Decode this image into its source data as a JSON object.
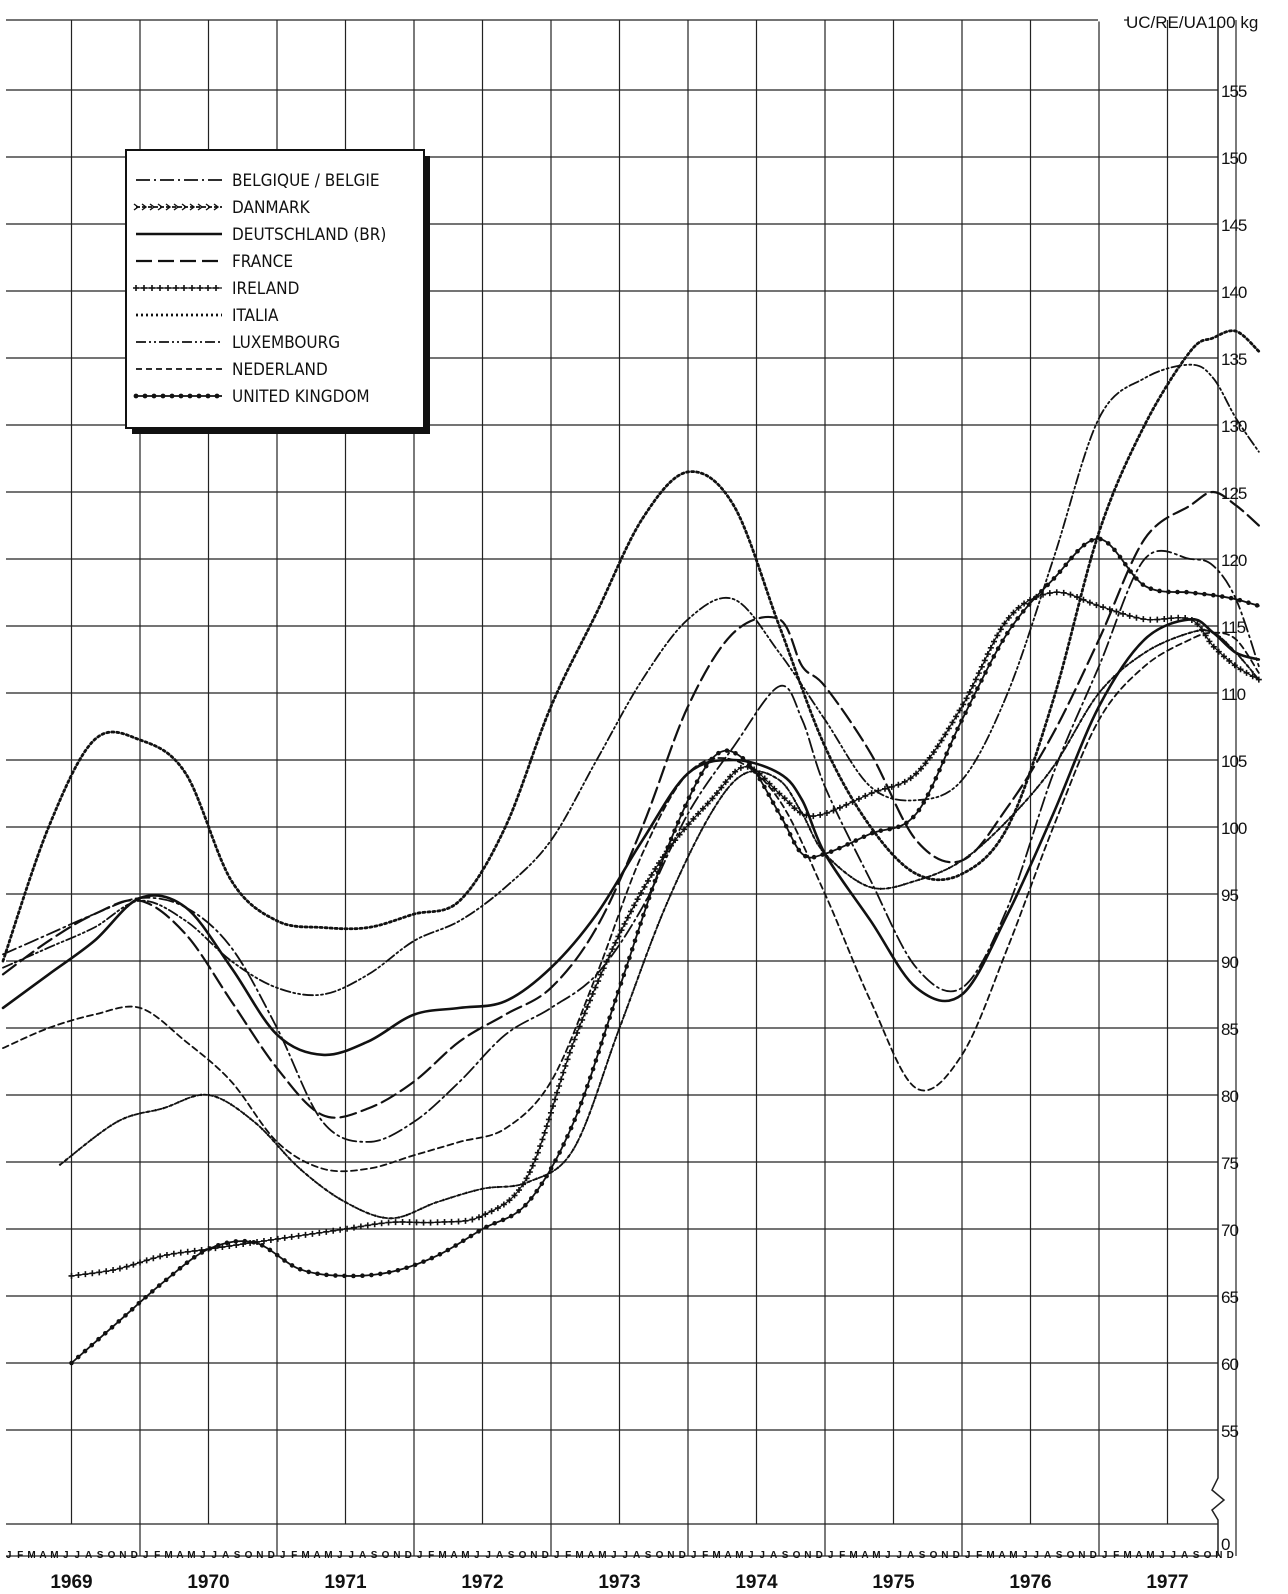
{
  "chart_data": {
    "type": "line",
    "unit_label": "UC/RE/UA100 kg",
    "ylim": [
      55,
      157
    ],
    "y_ticks": [
      55,
      60,
      65,
      70,
      75,
      80,
      85,
      90,
      95,
      100,
      105,
      110,
      115,
      120,
      125,
      130,
      135,
      140,
      145,
      150,
      155
    ],
    "y_axis_zero_label": "0",
    "years": [
      "1969",
      "1970",
      "1971",
      "1972",
      "1973",
      "1974",
      "1975",
      "1976",
      "1977"
    ],
    "month_letters": [
      "J",
      "F",
      "M",
      "A",
      "M",
      "J",
      "J",
      "A",
      "S",
      "O",
      "N",
      "D"
    ],
    "grid": true,
    "legend_position": "top-left",
    "x_unit": "month index from Jan 1969 (0 = Jan 1969)",
    "series": [
      {
        "name": "BELGIQUE / BELGIE",
        "style": "dash-dot",
        "points": [
          [
            0,
            90.5
          ],
          [
            4,
            92
          ],
          [
            8,
            93.5
          ],
          [
            12,
            94.7
          ],
          [
            16,
            94
          ],
          [
            20,
            91
          ],
          [
            24,
            85
          ],
          [
            28,
            78
          ],
          [
            32,
            76.5
          ],
          [
            36,
            78
          ],
          [
            40,
            81
          ],
          [
            44,
            84.5
          ],
          [
            48,
            86.5
          ],
          [
            52,
            89
          ],
          [
            56,
            94
          ],
          [
            60,
            101
          ],
          [
            64,
            106
          ],
          [
            68,
            110.5
          ],
          [
            70,
            108
          ],
          [
            72,
            103
          ],
          [
            76,
            96
          ],
          [
            80,
            89.5
          ],
          [
            84,
            88
          ],
          [
            88,
            94
          ],
          [
            92,
            104
          ],
          [
            96,
            112
          ],
          [
            100,
            120
          ],
          [
            104,
            120
          ],
          [
            106,
            119.5
          ],
          [
            108,
            117
          ],
          [
            110,
            112
          ]
        ]
      },
      {
        "name": "DANMARK",
        "style": "dashed-arrows",
        "points": [
          [
            5,
            74.8
          ],
          [
            10,
            78
          ],
          [
            14,
            79
          ],
          [
            18,
            80
          ],
          [
            22,
            78
          ],
          [
            26,
            74.5
          ],
          [
            30,
            72
          ],
          [
            34,
            70.8
          ],
          [
            38,
            72
          ],
          [
            42,
            73
          ],
          [
            46,
            73.5
          ],
          [
            50,
            76
          ],
          [
            54,
            85
          ],
          [
            58,
            94
          ],
          [
            62,
            101
          ],
          [
            65,
            104
          ],
          [
            68,
            103.5
          ],
          [
            70,
            101
          ],
          [
            72,
            98
          ],
          [
            76,
            95.5
          ],
          [
            80,
            96
          ],
          [
            84,
            97.5
          ],
          [
            88,
            100.5
          ],
          [
            92,
            104.5
          ],
          [
            96,
            110
          ],
          [
            100,
            113
          ],
          [
            104,
            114.5
          ],
          [
            106,
            114.5
          ],
          [
            108,
            113
          ],
          [
            110,
            111
          ]
        ]
      },
      {
        "name": "DEUTSCHLAND (BR)",
        "style": "solid",
        "points": [
          [
            0,
            86.5
          ],
          [
            4,
            89
          ],
          [
            8,
            91.5
          ],
          [
            12,
            94.7
          ],
          [
            16,
            94
          ],
          [
            20,
            89.5
          ],
          [
            24,
            84.5
          ],
          [
            28,
            83
          ],
          [
            32,
            84
          ],
          [
            36,
            86
          ],
          [
            40,
            86.5
          ],
          [
            44,
            87
          ],
          [
            48,
            89.5
          ],
          [
            52,
            93.5
          ],
          [
            56,
            99
          ],
          [
            60,
            104
          ],
          [
            64,
            105
          ],
          [
            68,
            104
          ],
          [
            70,
            102
          ],
          [
            72,
            98
          ],
          [
            76,
            93
          ],
          [
            80,
            88
          ],
          [
            84,
            87.5
          ],
          [
            88,
            93.5
          ],
          [
            92,
            101
          ],
          [
            96,
            109
          ],
          [
            100,
            114
          ],
          [
            104,
            115.5
          ],
          [
            106,
            114.5
          ],
          [
            108,
            113
          ],
          [
            110,
            112.5
          ]
        ]
      },
      {
        "name": "FRANCE",
        "style": "long-dash",
        "points": [
          [
            0,
            89
          ],
          [
            4,
            91.5
          ],
          [
            8,
            93.5
          ],
          [
            12,
            94.5
          ],
          [
            16,
            92
          ],
          [
            20,
            87
          ],
          [
            24,
            82
          ],
          [
            28,
            78.5
          ],
          [
            32,
            79
          ],
          [
            36,
            81
          ],
          [
            40,
            84
          ],
          [
            44,
            86
          ],
          [
            48,
            88
          ],
          [
            52,
            92.5
          ],
          [
            56,
            100
          ],
          [
            60,
            109
          ],
          [
            64,
            114.5
          ],
          [
            68,
            115.5
          ],
          [
            70,
            112
          ],
          [
            72,
            110.5
          ],
          [
            76,
            105.5
          ],
          [
            80,
            99
          ],
          [
            84,
            97.5
          ],
          [
            88,
            101.5
          ],
          [
            92,
            107
          ],
          [
            96,
            114
          ],
          [
            100,
            121.5
          ],
          [
            104,
            124
          ],
          [
            106,
            125
          ],
          [
            108,
            124
          ],
          [
            110,
            122.5
          ]
        ]
      },
      {
        "name": "IRELAND",
        "style": "crosses",
        "points": [
          [
            6,
            66.5
          ],
          [
            10,
            67
          ],
          [
            14,
            68
          ],
          [
            18,
            68.5
          ],
          [
            22,
            69
          ],
          [
            26,
            69.5
          ],
          [
            30,
            70
          ],
          [
            34,
            70.5
          ],
          [
            38,
            70.5
          ],
          [
            42,
            71
          ],
          [
            46,
            74
          ],
          [
            50,
            84
          ],
          [
            54,
            92
          ],
          [
            58,
            98
          ],
          [
            62,
            102
          ],
          [
            65,
            104.5
          ],
          [
            68,
            102.5
          ],
          [
            70,
            101
          ],
          [
            72,
            101
          ],
          [
            76,
            102.5
          ],
          [
            80,
            104
          ],
          [
            84,
            109
          ],
          [
            88,
            115.5
          ],
          [
            92,
            117.5
          ],
          [
            96,
            116.5
          ],
          [
            100,
            115.5
          ],
          [
            104,
            115.5
          ],
          [
            106,
            113.5
          ],
          [
            108,
            112
          ],
          [
            110,
            111
          ]
        ]
      },
      {
        "name": "ITALIA",
        "style": "dotted",
        "points": [
          [
            0,
            90
          ],
          [
            4,
            100
          ],
          [
            8,
            106.5
          ],
          [
            12,
            106.5
          ],
          [
            16,
            104
          ],
          [
            20,
            96
          ],
          [
            24,
            93
          ],
          [
            28,
            92.5
          ],
          [
            32,
            92.5
          ],
          [
            36,
            93.5
          ],
          [
            40,
            94.5
          ],
          [
            44,
            100
          ],
          [
            48,
            109
          ],
          [
            52,
            116
          ],
          [
            56,
            123
          ],
          [
            60,
            126.5
          ],
          [
            64,
            124
          ],
          [
            68,
            115
          ],
          [
            72,
            106
          ],
          [
            76,
            100
          ],
          [
            80,
            96.5
          ],
          [
            84,
            96.5
          ],
          [
            88,
            100
          ],
          [
            92,
            109.5
          ],
          [
            96,
            122
          ],
          [
            100,
            130
          ],
          [
            104,
            135.5
          ],
          [
            106,
            136.5
          ],
          [
            108,
            137
          ],
          [
            110,
            135.5
          ]
        ]
      },
      {
        "name": "LUXEMBOURG",
        "style": "dash-dot-dot",
        "points": [
          [
            0,
            89.5
          ],
          [
            4,
            91
          ],
          [
            8,
            92.5
          ],
          [
            12,
            94.5
          ],
          [
            16,
            93
          ],
          [
            20,
            90
          ],
          [
            24,
            88
          ],
          [
            28,
            87.5
          ],
          [
            32,
            89
          ],
          [
            36,
            91.5
          ],
          [
            40,
            93
          ],
          [
            44,
            95.5
          ],
          [
            48,
            99
          ],
          [
            52,
            105
          ],
          [
            56,
            111
          ],
          [
            60,
            115.5
          ],
          [
            64,
            117
          ],
          [
            68,
            113
          ],
          [
            72,
            108
          ],
          [
            76,
            103
          ],
          [
            80,
            102
          ],
          [
            84,
            103.5
          ],
          [
            88,
            110
          ],
          [
            92,
            120
          ],
          [
            96,
            130.5
          ],
          [
            100,
            133.5
          ],
          [
            104,
            134.5
          ],
          [
            106,
            133.5
          ],
          [
            108,
            130.5
          ],
          [
            110,
            128
          ]
        ]
      },
      {
        "name": "NEDERLAND",
        "style": "short-dash",
        "points": [
          [
            0,
            83.5
          ],
          [
            4,
            85
          ],
          [
            8,
            86
          ],
          [
            12,
            86.5
          ],
          [
            16,
            84
          ],
          [
            20,
            81
          ],
          [
            24,
            76.5
          ],
          [
            28,
            74.5
          ],
          [
            32,
            74.5
          ],
          [
            36,
            75.5
          ],
          [
            40,
            76.5
          ],
          [
            44,
            77.5
          ],
          [
            48,
            81
          ],
          [
            52,
            89
          ],
          [
            56,
            98
          ],
          [
            60,
            104
          ],
          [
            64,
            105
          ],
          [
            68,
            102
          ],
          [
            72,
            95
          ],
          [
            76,
            87
          ],
          [
            80,
            80.5
          ],
          [
            84,
            83
          ],
          [
            88,
            91
          ],
          [
            92,
            100
          ],
          [
            96,
            108
          ],
          [
            100,
            112
          ],
          [
            104,
            114
          ],
          [
            106,
            114.5
          ],
          [
            108,
            114
          ],
          [
            110,
            111.5
          ]
        ]
      },
      {
        "name": "UNITED KINGDOM",
        "style": "line-dots",
        "points": [
          [
            6,
            60
          ],
          [
            10,
            63
          ],
          [
            14,
            66
          ],
          [
            18,
            68.5
          ],
          [
            22,
            69
          ],
          [
            26,
            67
          ],
          [
            30,
            66.5
          ],
          [
            34,
            66.8
          ],
          [
            38,
            68
          ],
          [
            42,
            70
          ],
          [
            46,
            72
          ],
          [
            50,
            78
          ],
          [
            54,
            88
          ],
          [
            58,
            98
          ],
          [
            62,
            105
          ],
          [
            65,
            105
          ],
          [
            68,
            101
          ],
          [
            70,
            98
          ],
          [
            72,
            98
          ],
          [
            76,
            99.5
          ],
          [
            80,
            101
          ],
          [
            84,
            108
          ],
          [
            88,
            114.5
          ],
          [
            92,
            118.5
          ],
          [
            96,
            121.5
          ],
          [
            100,
            118
          ],
          [
            104,
            117.5
          ],
          [
            106,
            117.3
          ],
          [
            108,
            117
          ],
          [
            110,
            116.5
          ]
        ]
      }
    ]
  }
}
